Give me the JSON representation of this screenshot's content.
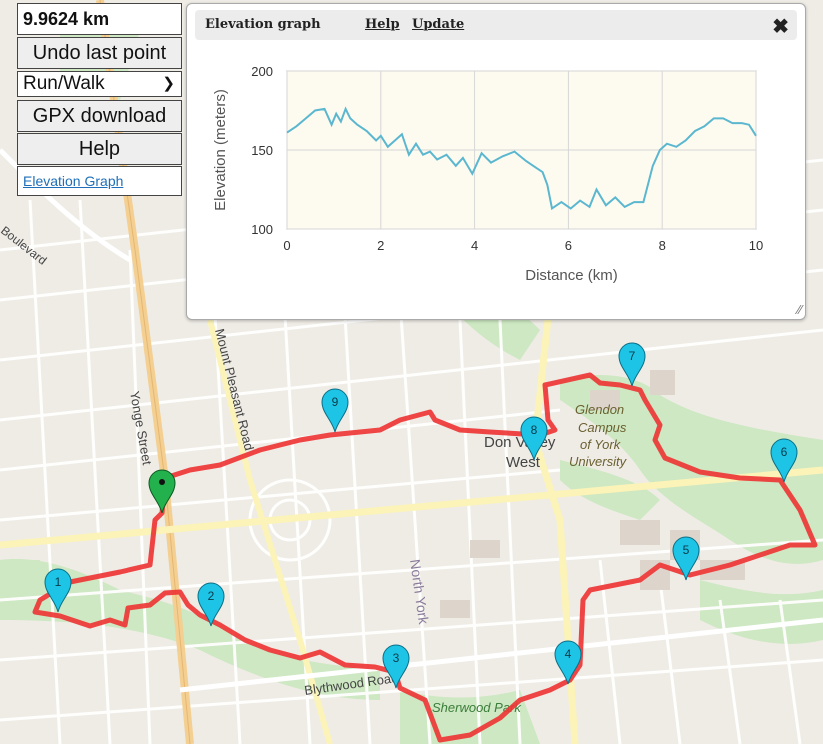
{
  "controls": {
    "distance": "9.9624 km",
    "undo_label": "Undo last point",
    "mode_value": "Run/Walk",
    "gpx_label": "GPX download",
    "help_label": "Help",
    "elevation_link": "Elevation Graph"
  },
  "elevation_panel": {
    "title": "Elevation graph",
    "help_link": "Help",
    "update_link": "Update",
    "close_icon": "close-icon",
    "resize_icon": "resize-grip-icon"
  },
  "chart_data": {
    "type": "area",
    "title": "",
    "xlabel": "Distance (km)",
    "ylabel": "Elevation (meters)",
    "xlim": [
      0,
      10
    ],
    "ylim": [
      100,
      200
    ],
    "x_ticks": [
      0,
      2,
      4,
      6,
      8,
      10
    ],
    "y_ticks": [
      100,
      150,
      200
    ],
    "grid": true,
    "line_color": "#5bb7cf",
    "series": [
      {
        "x": [
          0,
          0.2,
          0.4,
          0.6,
          0.8,
          0.95,
          1.05,
          1.15,
          1.25,
          1.35,
          1.5,
          1.7,
          1.9,
          2.0,
          2.15,
          2.3,
          2.45,
          2.6,
          2.75,
          2.9,
          3.05,
          3.2,
          3.4,
          3.6,
          3.75,
          3.95,
          4.15,
          4.35,
          4.6,
          4.85,
          5.1,
          5.3,
          5.45,
          5.55,
          5.65,
          5.85,
          6.05,
          6.25,
          6.45,
          6.6,
          6.8,
          7.0,
          7.2,
          7.4,
          7.6,
          7.8,
          7.95,
          8.1,
          8.3,
          8.5,
          8.7,
          8.9,
          9.1,
          9.3,
          9.5,
          9.7,
          9.85,
          10.0
        ],
        "y": [
          161,
          165,
          170,
          175,
          176,
          166,
          173,
          168,
          176,
          170,
          166,
          162,
          156,
          159,
          152,
          156,
          160,
          147,
          154,
          147,
          149,
          144,
          147,
          140,
          145,
          135,
          148,
          142,
          146,
          149,
          143,
          139,
          136,
          128,
          113,
          117,
          113,
          118,
          114,
          125,
          115,
          120,
          114,
          117,
          117,
          140,
          150,
          154,
          152,
          156,
          162,
          165,
          170,
          170,
          167,
          167,
          166,
          159
        ]
      }
    ]
  },
  "map": {
    "labels": {
      "yonge": "Yonge Street",
      "mount_pleasant": "Mount Pleasant Road",
      "boulevard": "Boulevard",
      "blythwood": "Blythwood Road",
      "north_york": "North York",
      "sherwood": "Sherwood Park",
      "don_valley": "Don Valley",
      "west": "West",
      "glendon": "Glendon",
      "campus": "Campus",
      "of_york": "of York",
      "university": "University"
    },
    "markers": [
      "1",
      "2",
      "3",
      "4",
      "5",
      "6",
      "7",
      "8",
      "9"
    ],
    "start_marker": "start-marker",
    "route_color": "#ee3636",
    "marker_color": "#1ec4e6",
    "start_color": "#22b14c"
  }
}
